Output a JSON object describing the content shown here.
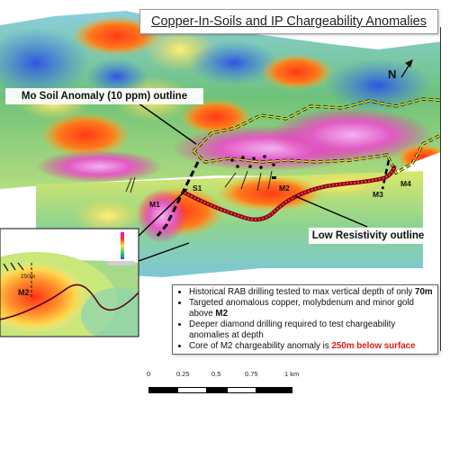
{
  "title": "Copper-In-Soils and IP Chargeability Anomalies",
  "north_label": "N",
  "labels": {
    "mo_soil": "Mo Soil Anomaly (10 ppm) outline",
    "low_resistivity": "Low Resistivity outline"
  },
  "anomalies": [
    "M1",
    "S1",
    "M2",
    "M3",
    "M4"
  ],
  "section_inset": {
    "anomaly_label": "M2",
    "depth_label": "250m"
  },
  "notes": {
    "items": [
      {
        "parts": [
          {
            "text": "Historical RAB drilling tested to max vertical depth of only ",
            "style": "normal"
          },
          {
            "text": "70m",
            "style": "bold"
          }
        ]
      },
      {
        "parts": [
          {
            "text": "Targeted anomalous copper, molybdenum and minor gold above ",
            "style": "normal"
          },
          {
            "text": "M2",
            "style": "bold"
          }
        ]
      },
      {
        "parts": [
          {
            "text": "Deeper diamond drilling required to test chargeability anomalies at depth",
            "style": "normal"
          }
        ]
      },
      {
        "parts": [
          {
            "text": "Core of M2 chargeability anomaly is ",
            "style": "normal"
          },
          {
            "text": "250m below surface",
            "style": "red"
          }
        ]
      }
    ]
  },
  "scale_bar": {
    "ticks": [
      "0",
      "0.25",
      "0.5",
      "0.75",
      "1 km"
    ]
  },
  "colors": {
    "mo_outline": "#f2e500",
    "low_res_outline": "#b3001b",
    "highlight_red": "#e11b1b"
  }
}
